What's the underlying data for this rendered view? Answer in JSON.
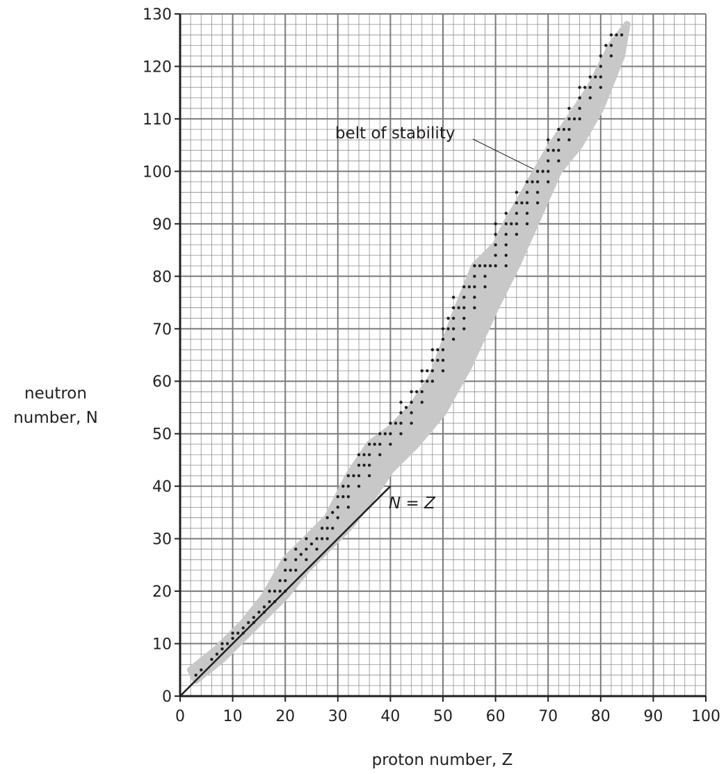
{
  "chart_data": {
    "type": "scatter",
    "xlabel": "proton number, Z",
    "ylabel_line1": "neutron",
    "ylabel_line2": "number, N",
    "xlim": [
      0,
      100
    ],
    "ylim": [
      0,
      130
    ],
    "x_ticks": [
      0,
      10,
      20,
      30,
      40,
      50,
      60,
      70,
      80,
      90,
      100
    ],
    "y_ticks": [
      0,
      10,
      20,
      30,
      40,
      50,
      60,
      70,
      80,
      90,
      100,
      110,
      120,
      130
    ],
    "grid": true,
    "annotations": {
      "belt_label": "belt of stability",
      "line_label": "N = Z"
    },
    "reference_line": {
      "name": "N = Z",
      "x": [
        0,
        40
      ],
      "y": [
        0,
        40
      ]
    },
    "belt_of_stability": {
      "color": "#c8c8c8",
      "lower_edge": [
        [
          3,
          3
        ],
        [
          8,
          7
        ],
        [
          12,
          11
        ],
        [
          16,
          15
        ],
        [
          20,
          19
        ],
        [
          24,
          24
        ],
        [
          28,
          28
        ],
        [
          32,
          32
        ],
        [
          36,
          37
        ],
        [
          40,
          43
        ],
        [
          45,
          48
        ],
        [
          50,
          54
        ],
        [
          55,
          63
        ],
        [
          60,
          74
        ],
        [
          64,
          82
        ],
        [
          68,
          91
        ],
        [
          72,
          100
        ],
        [
          76,
          105
        ],
        [
          80,
          112
        ],
        [
          84,
          122
        ]
      ],
      "upper_edge": [
        [
          2,
          5
        ],
        [
          7,
          9
        ],
        [
          12,
          14
        ],
        [
          16,
          19
        ],
        [
          20,
          26
        ],
        [
          24,
          30
        ],
        [
          28,
          34
        ],
        [
          32,
          42
        ],
        [
          36,
          48
        ],
        [
          40,
          51
        ],
        [
          44,
          55
        ],
        [
          48,
          61
        ],
        [
          52,
          72
        ],
        [
          56,
          82
        ],
        [
          60,
          86
        ],
        [
          62,
          90
        ],
        [
          66,
          97
        ],
        [
          70,
          104
        ],
        [
          74,
          110
        ],
        [
          78,
          116
        ],
        [
          82,
          124
        ],
        [
          85,
          128
        ]
      ]
    },
    "series": [
      {
        "marker": "dot",
        "color": "#231f20",
        "points": [
          [
            3,
            4
          ],
          [
            4,
            5
          ],
          [
            6,
            7
          ],
          [
            7,
            8
          ],
          [
            8,
            9
          ],
          [
            8,
            10
          ],
          [
            9,
            10
          ],
          [
            10,
            11
          ],
          [
            10,
            12
          ],
          [
            11,
            12
          ],
          [
            12,
            12
          ],
          [
            12,
            13
          ],
          [
            13,
            14
          ],
          [
            14,
            14
          ],
          [
            14,
            15
          ],
          [
            15,
            16
          ],
          [
            16,
            16
          ],
          [
            16,
            17
          ],
          [
            17,
            18
          ],
          [
            17,
            20
          ],
          [
            18,
            18
          ],
          [
            18,
            20
          ],
          [
            19,
            20
          ],
          [
            19,
            22
          ],
          [
            20,
            20
          ],
          [
            20,
            22
          ],
          [
            20,
            24
          ],
          [
            20,
            26
          ],
          [
            21,
            24
          ],
          [
            22,
            24
          ],
          [
            22,
            26
          ],
          [
            22,
            28
          ],
          [
            23,
            27
          ],
          [
            24,
            26
          ],
          [
            24,
            28
          ],
          [
            24,
            30
          ],
          [
            25,
            29
          ],
          [
            26,
            28
          ],
          [
            26,
            30
          ],
          [
            27,
            30
          ],
          [
            27,
            32
          ],
          [
            28,
            30
          ],
          [
            28,
            32
          ],
          [
            28,
            34
          ],
          [
            29,
            32
          ],
          [
            29,
            35
          ],
          [
            30,
            34
          ],
          [
            30,
            36
          ],
          [
            30,
            38
          ],
          [
            31,
            38
          ],
          [
            31,
            40
          ],
          [
            32,
            36
          ],
          [
            32,
            38
          ],
          [
            32,
            40
          ],
          [
            32,
            42
          ],
          [
            33,
            42
          ],
          [
            34,
            40
          ],
          [
            34,
            42
          ],
          [
            34,
            44
          ],
          [
            34,
            46
          ],
          [
            35,
            44
          ],
          [
            35,
            46
          ],
          [
            36,
            42
          ],
          [
            36,
            44
          ],
          [
            36,
            46
          ],
          [
            36,
            48
          ],
          [
            37,
            48
          ],
          [
            38,
            46
          ],
          [
            38,
            48
          ],
          [
            38,
            50
          ],
          [
            39,
            50
          ],
          [
            40,
            48
          ],
          [
            40,
            50
          ],
          [
            40,
            52
          ],
          [
            41,
            52
          ],
          [
            42,
            50
          ],
          [
            42,
            52
          ],
          [
            42,
            54
          ],
          [
            42,
            56
          ],
          [
            43,
            55
          ],
          [
            44,
            52
          ],
          [
            44,
            54
          ],
          [
            44,
            56
          ],
          [
            44,
            58
          ],
          [
            45,
            58
          ],
          [
            46,
            56
          ],
          [
            46,
            58
          ],
          [
            46,
            60
          ],
          [
            46,
            62
          ],
          [
            47,
            60
          ],
          [
            47,
            62
          ],
          [
            48,
            60
          ],
          [
            48,
            62
          ],
          [
            48,
            64
          ],
          [
            48,
            66
          ],
          [
            49,
            64
          ],
          [
            49,
            66
          ],
          [
            50,
            62
          ],
          [
            50,
            64
          ],
          [
            50,
            66
          ],
          [
            50,
            68
          ],
          [
            50,
            70
          ],
          [
            51,
            70
          ],
          [
            51,
            72
          ],
          [
            52,
            68
          ],
          [
            52,
            70
          ],
          [
            52,
            72
          ],
          [
            52,
            74
          ],
          [
            52,
            76
          ],
          [
            53,
            74
          ],
          [
            54,
            70
          ],
          [
            54,
            72
          ],
          [
            54,
            74
          ],
          [
            54,
            76
          ],
          [
            54,
            78
          ],
          [
            55,
            78
          ],
          [
            56,
            74
          ],
          [
            56,
            76
          ],
          [
            56,
            78
          ],
          [
            56,
            80
          ],
          [
            56,
            82
          ],
          [
            57,
            82
          ],
          [
            58,
            78
          ],
          [
            58,
            80
          ],
          [
            58,
            82
          ],
          [
            59,
            82
          ],
          [
            60,
            82
          ],
          [
            60,
            84
          ],
          [
            60,
            86
          ],
          [
            60,
            88
          ],
          [
            60,
            90
          ],
          [
            62,
            82
          ],
          [
            62,
            84
          ],
          [
            62,
            86
          ],
          [
            62,
            88
          ],
          [
            62,
            90
          ],
          [
            62,
            92
          ],
          [
            63,
            90
          ],
          [
            64,
            88
          ],
          [
            64,
            90
          ],
          [
            64,
            92
          ],
          [
            64,
            94
          ],
          [
            64,
            96
          ],
          [
            65,
            94
          ],
          [
            66,
            90
          ],
          [
            66,
            92
          ],
          [
            66,
            94
          ],
          [
            66,
            96
          ],
          [
            66,
            98
          ],
          [
            67,
            98
          ],
          [
            68,
            94
          ],
          [
            68,
            96
          ],
          [
            68,
            98
          ],
          [
            68,
            100
          ],
          [
            69,
            100
          ],
          [
            70,
            98
          ],
          [
            70,
            100
          ],
          [
            70,
            102
          ],
          [
            70,
            104
          ],
          [
            70,
            106
          ],
          [
            71,
            104
          ],
          [
            72,
            102
          ],
          [
            72,
            104
          ],
          [
            72,
            106
          ],
          [
            72,
            108
          ],
          [
            73,
            108
          ],
          [
            74,
            106
          ],
          [
            74,
            108
          ],
          [
            74,
            110
          ],
          [
            74,
            112
          ],
          [
            75,
            110
          ],
          [
            76,
            110
          ],
          [
            76,
            112
          ],
          [
            76,
            114
          ],
          [
            76,
            116
          ],
          [
            77,
            116
          ],
          [
            78,
            114
          ],
          [
            78,
            116
          ],
          [
            78,
            118
          ],
          [
            79,
            118
          ],
          [
            80,
            116
          ],
          [
            80,
            118
          ],
          [
            80,
            120
          ],
          [
            80,
            122
          ],
          [
            81,
            124
          ],
          [
            82,
            122
          ],
          [
            82,
            124
          ],
          [
            82,
            126
          ],
          [
            83,
            126
          ],
          [
            84,
            126
          ]
        ]
      }
    ]
  }
}
